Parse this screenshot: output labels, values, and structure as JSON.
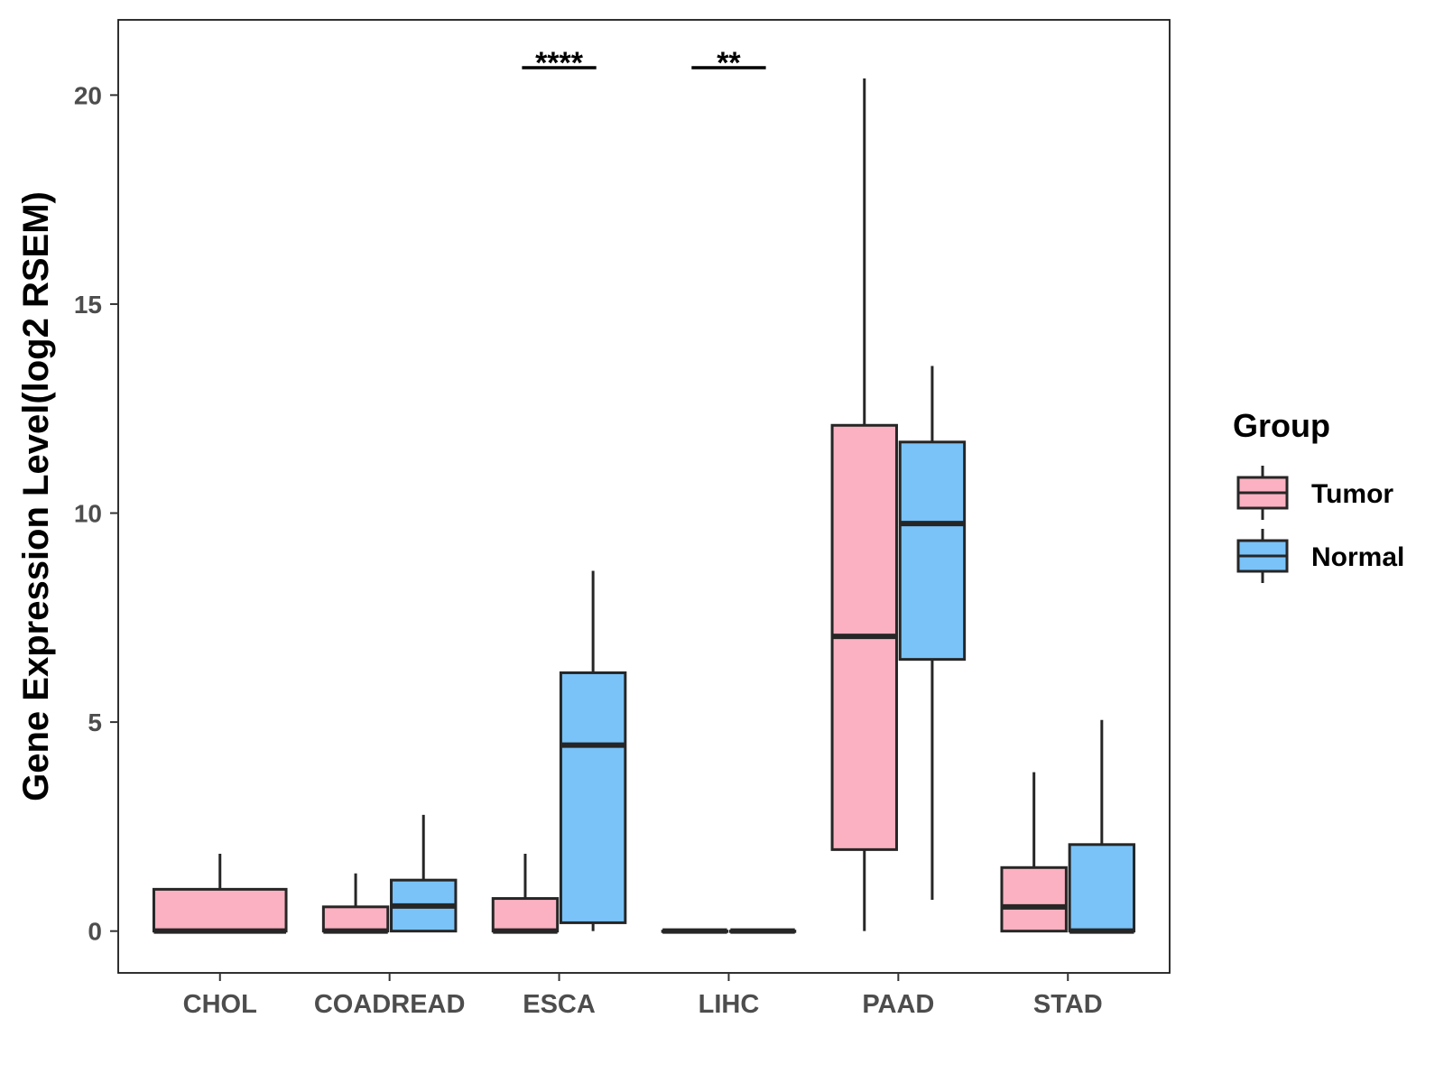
{
  "chart_data": {
    "type": "boxplot",
    "title": "",
    "xlabel": "",
    "ylabel": "Gene Expression Level(log2 RSEM)",
    "ylim": [
      -1,
      21.8
    ],
    "yticks": [
      0,
      5,
      10,
      15,
      20
    ],
    "categories": [
      "CHOL",
      "COADREAD",
      "ESCA",
      "LIHC",
      "PAAD",
      "STAD"
    ],
    "legend": {
      "title": "Group",
      "position": "right",
      "items": [
        {
          "key": "tumor",
          "label": "Tumor",
          "color": "#FBB1C1"
        },
        {
          "key": "normal",
          "label": "Normal",
          "color": "#79C3F8"
        }
      ]
    },
    "series": [
      {
        "name": "Tumor",
        "color": "#FBB1C1",
        "boxes": [
          {
            "category": "CHOL",
            "min": 0,
            "q1": 0,
            "median": 0,
            "q3": 1.0,
            "max": 1.85
          },
          {
            "category": "COADREAD",
            "min": 0,
            "q1": 0,
            "median": 0,
            "q3": 0.58,
            "max": 1.38
          },
          {
            "category": "ESCA",
            "min": 0,
            "q1": 0,
            "median": 0,
            "q3": 0.78,
            "max": 1.85
          },
          {
            "category": "LIHC",
            "min": 0,
            "q1": 0,
            "median": 0,
            "q3": 0,
            "max": 0
          },
          {
            "category": "PAAD",
            "min": 0,
            "q1": 1.95,
            "median": 7.05,
            "q3": 12.1,
            "max": 20.4
          },
          {
            "category": "STAD",
            "min": 0,
            "q1": 0,
            "median": 0.58,
            "q3": 1.52,
            "max": 3.8
          }
        ]
      },
      {
        "name": "Normal",
        "color": "#79C3F8",
        "boxes": [
          {
            "category": "CHOL",
            "min": null,
            "q1": null,
            "median": null,
            "q3": null,
            "max": null
          },
          {
            "category": "COADREAD",
            "min": 0,
            "q1": 0,
            "median": 0.6,
            "q3": 1.22,
            "max": 2.78
          },
          {
            "category": "ESCA",
            "min": 0,
            "q1": 0.2,
            "median": 4.45,
            "q3": 6.18,
            "max": 8.62
          },
          {
            "category": "LIHC",
            "min": 0,
            "q1": 0,
            "median": 0,
            "q3": 0,
            "max": 0
          },
          {
            "category": "PAAD",
            "min": 0.75,
            "q1": 6.5,
            "median": 9.75,
            "q3": 11.7,
            "max": 13.52
          },
          {
            "category": "STAD",
            "min": 0,
            "q1": 0,
            "median": 0,
            "q3": 2.07,
            "max": 5.05
          }
        ]
      }
    ],
    "significance": [
      {
        "category": "ESCA",
        "label": "****"
      },
      {
        "category": "LIHC",
        "label": "**"
      }
    ],
    "grid": false
  }
}
